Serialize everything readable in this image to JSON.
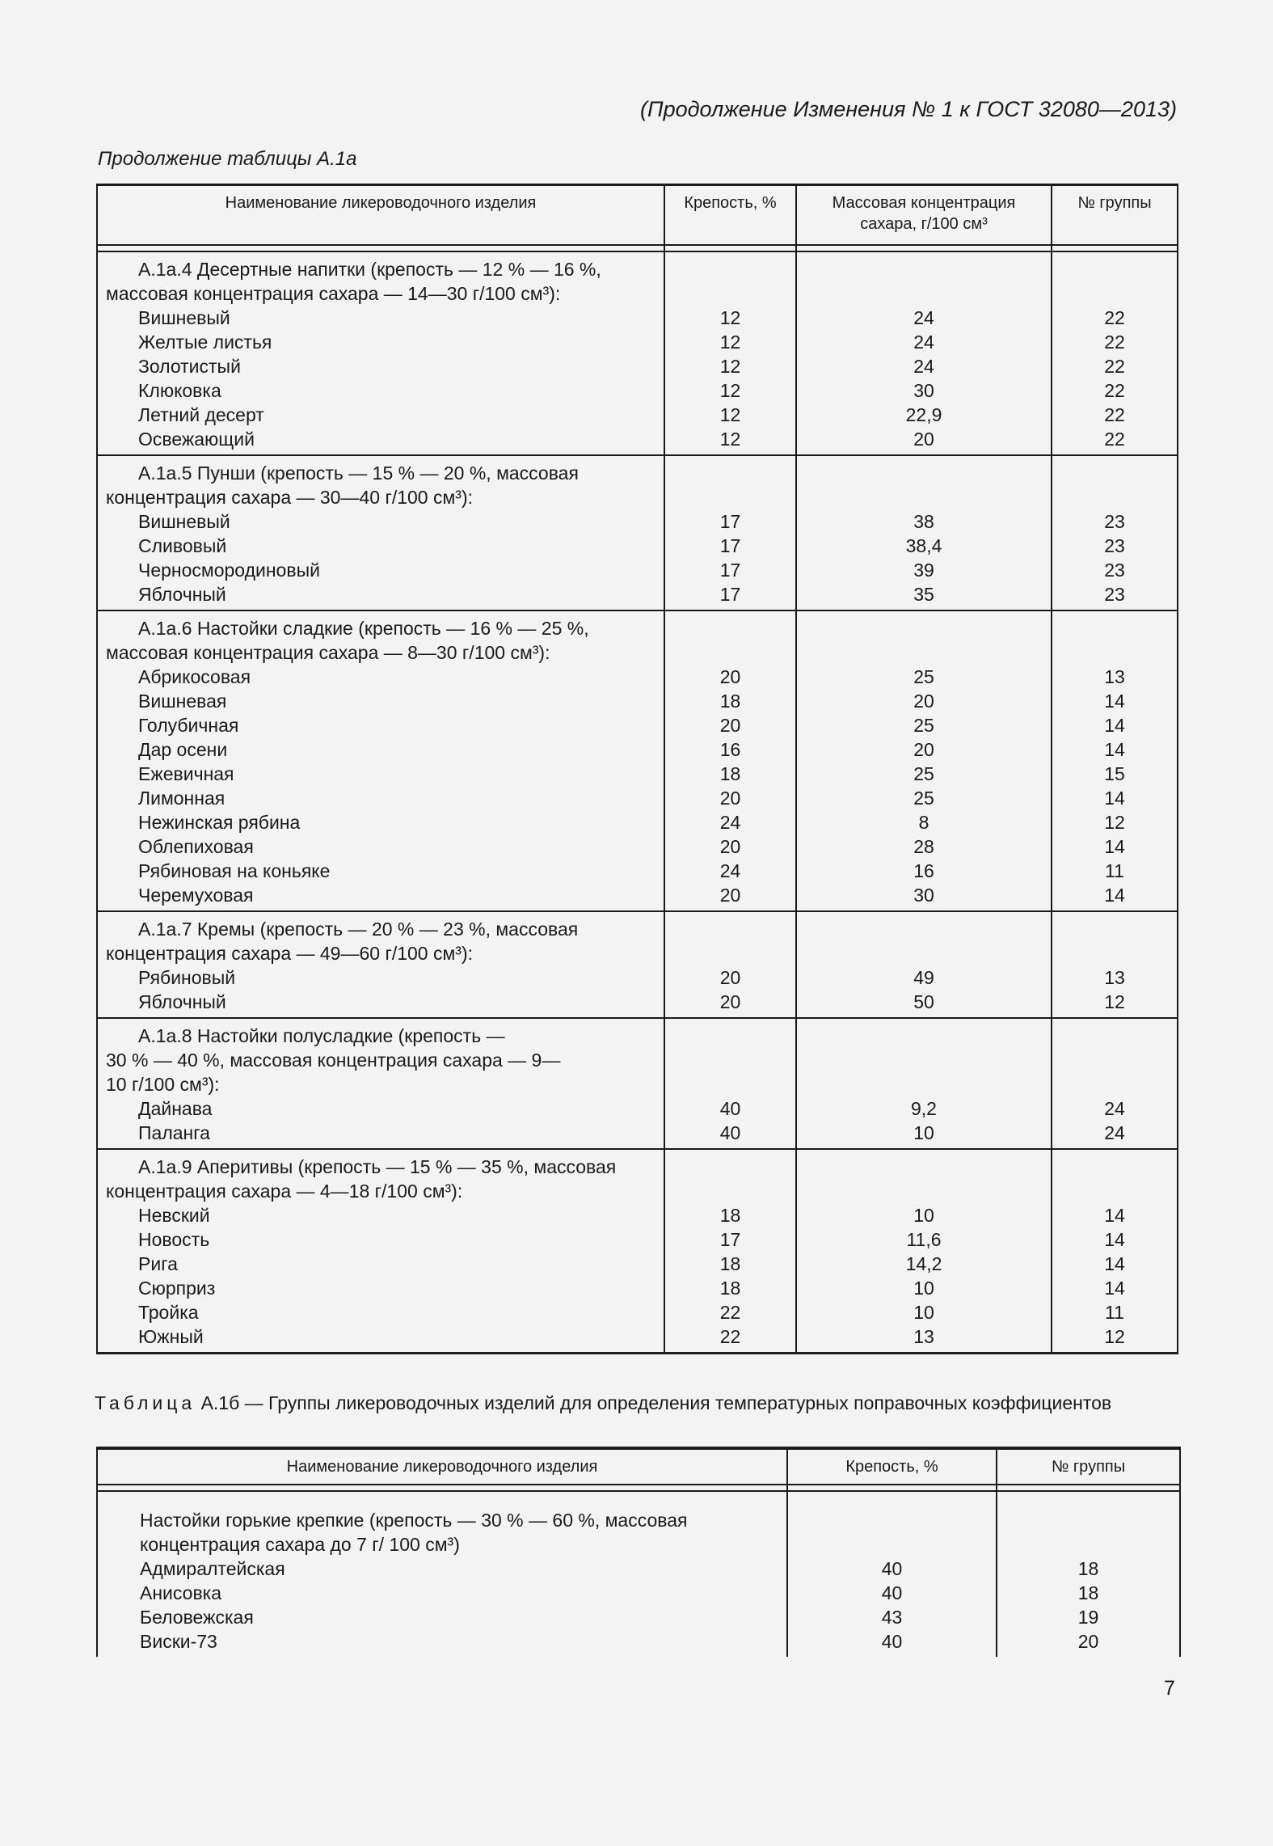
{
  "running_header": "(Продолжение Изменения № 1 к ГОСТ 32080—2013)",
  "table1": {
    "caption": "Продолжение таблицы А.1а",
    "headers": [
      "Наименование ликероводочного изделия",
      "Крепость, %",
      "Массовая концентрация сахара, г/100 см³",
      "№ группы"
    ],
    "sections": [
      {
        "heading": [
          "А.1а.4  Десертные напитки (крепость —  12 % — 16 %,",
          "массовая концентрация сахара — 14—30 г/100 см³):"
        ],
        "items": [
          [
            "Вишневый",
            "12",
            "24",
            "22"
          ],
          [
            "Желтые листья",
            "12",
            "24",
            "22"
          ],
          [
            "Золотистый",
            "12",
            "24",
            "22"
          ],
          [
            "Клюковка",
            "12",
            "30",
            "22"
          ],
          [
            "Летний десерт",
            "12",
            "22,9",
            "22"
          ],
          [
            "Освежающий",
            "12",
            "20",
            "22"
          ]
        ]
      },
      {
        "heading": [
          "А.1а.5 Пунши (крепость — 15 % — 20 %, массовая",
          "концентрация сахара — 30—40 г/100 см³):"
        ],
        "items": [
          [
            "Вишневый",
            "17",
            "38",
            "23"
          ],
          [
            "Сливовый",
            "17",
            "38,4",
            "23"
          ],
          [
            "Черносмородиновый",
            "17",
            "39",
            "23"
          ],
          [
            "Яблочный",
            "17",
            "35",
            "23"
          ]
        ]
      },
      {
        "heading": [
          "А.1а.6 Настойки сладкие (крепость — 16 % — 25 %,",
          "массовая концентрация сахара — 8—30 г/100 см³):"
        ],
        "items": [
          [
            "Абрикосовая",
            "20",
            "25",
            "13"
          ],
          [
            "Вишневая",
            "18",
            "20",
            "14"
          ],
          [
            "Голубичная",
            "20",
            "25",
            "14"
          ],
          [
            "Дар осени",
            "16",
            "20",
            "14"
          ],
          [
            "Ежевичная",
            "18",
            "25",
            "15"
          ],
          [
            "Лимонная",
            "20",
            "25",
            "14"
          ],
          [
            "Нежинская рябина",
            "24",
            "8",
            "12"
          ],
          [
            "Облепиховая",
            "20",
            "28",
            "14"
          ],
          [
            "Рябиновая на коньяке",
            "24",
            "16",
            "11"
          ],
          [
            "Черемуховая",
            "20",
            "30",
            "14"
          ]
        ]
      },
      {
        "heading": [
          "А.1а.7 Кремы (крепость — 20 % — 23 %, массовая",
          "концентрация сахара — 49—60 г/100 см³):"
        ],
        "items": [
          [
            "Рябиновый",
            "20",
            "49",
            "13"
          ],
          [
            "Яблочный",
            "20",
            "50",
            "12"
          ]
        ]
      },
      {
        "heading": [
          "А.1а.8 Настойки полусладкие (крепость —",
          "30 % — 40 %, массовая концентрация сахара — 9—",
          "10 г/100 см³):"
        ],
        "items": [
          [
            "Дайнава",
            "40",
            "9,2",
            "24"
          ],
          [
            "Паланга",
            "40",
            "10",
            "24"
          ]
        ]
      },
      {
        "heading": [
          "А.1а.9 Аперитивы (крепость — 15 % — 35 %, массовая",
          "концентрация сахара — 4—18 г/100 см³):"
        ],
        "items": [
          [
            "Невский",
            "18",
            "10",
            "14"
          ],
          [
            "Новость",
            "17",
            "11,6",
            "14"
          ],
          [
            "Рига",
            "18",
            "14,2",
            "14"
          ],
          [
            "Сюрприз",
            "18",
            "10",
            "14"
          ],
          [
            "Тройка",
            "22",
            "10",
            "11"
          ],
          [
            "Южный",
            "22",
            "13",
            "12"
          ]
        ]
      }
    ]
  },
  "table2": {
    "caption_label": "Таблица",
    "caption_text": " А.1б — Группы ликероводочных изделий для определения температурных поправочных коэффициентов",
    "headers": [
      "Наименование ликероводочного изделия",
      "Крепость, %",
      "№ группы"
    ],
    "sections": [
      {
        "heading": [
          "Настойки горькие крепкие (крепость — 30 % — 60 %, массовая",
          "концентрация сахара до 7 г/ 100 см³)"
        ],
        "items": [
          [
            "Адмиралтейская",
            "40",
            "18"
          ],
          [
            "Анисовка",
            "40",
            "18"
          ],
          [
            "Беловежская",
            "43",
            "19"
          ],
          [
            "Виски-73",
            "40",
            "20"
          ]
        ]
      }
    ]
  },
  "page_number": "7"
}
